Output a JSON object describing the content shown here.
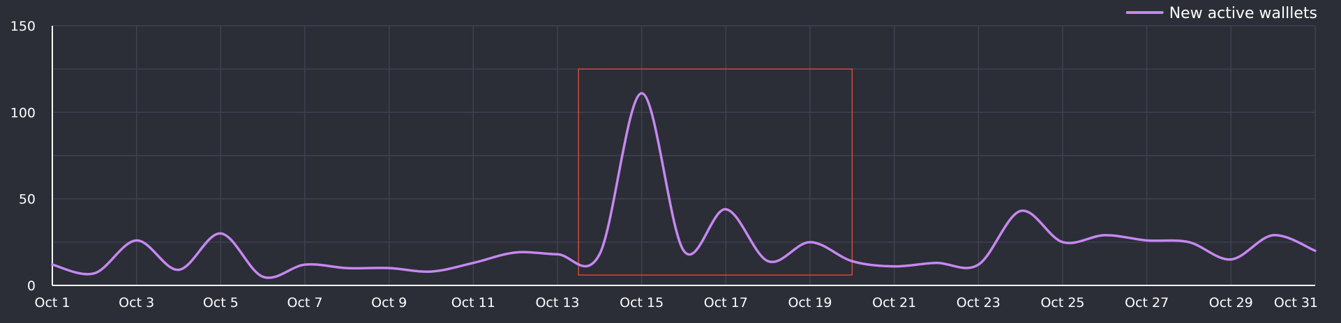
{
  "chart_data": {
    "type": "line",
    "title": "",
    "xlabel": "",
    "ylabel": "",
    "ylim": [
      0,
      150
    ],
    "y_ticks": [
      "0",
      "50",
      "100",
      "150"
    ],
    "x_ticks": [
      "Oct 1",
      "Oct 3",
      "Oct 5",
      "Oct 7",
      "Oct 9",
      "Oct 11",
      "Oct 13",
      "Oct 15",
      "Oct 17",
      "Oct 19",
      "Oct 21",
      "Oct 23",
      "Oct 25",
      "Oct 27",
      "Oct 29",
      "Oct 31"
    ],
    "grid": true,
    "legend_position": "top-right",
    "x": [
      "Oct 1",
      "Oct 2",
      "Oct 3",
      "Oct 4",
      "Oct 5",
      "Oct 6",
      "Oct 7",
      "Oct 8",
      "Oct 9",
      "Oct 10",
      "Oct 11",
      "Oct 12",
      "Oct 13",
      "Oct 14",
      "Oct 15",
      "Oct 16",
      "Oct 17",
      "Oct 18",
      "Oct 19",
      "Oct 20",
      "Oct 21",
      "Oct 22",
      "Oct 23",
      "Oct 24",
      "Oct 25",
      "Oct 26",
      "Oct 27",
      "Oct 28",
      "Oct 29",
      "Oct 30",
      "Oct 31"
    ],
    "series": [
      {
        "name": "New active walllets",
        "color": "#c688f0",
        "values": [
          12,
          7,
          26,
          9,
          30,
          5,
          12,
          10,
          10,
          8,
          13,
          19,
          18,
          18,
          111,
          20,
          44,
          14,
          25,
          14,
          11,
          13,
          12,
          43,
          25,
          29,
          26,
          25,
          15,
          29,
          20
        ]
      }
    ],
    "highlight_box": {
      "x_start": "Oct 13",
      "x_start_offset_days": 0.5,
      "x_end": "Oct 20",
      "y_min": 6,
      "y_max": 125,
      "color": "#d44a3a"
    }
  },
  "colors": {
    "background": "#2b2d37",
    "grid": "#3f4250",
    "axis": "#ffffff",
    "text": "#ffffff"
  }
}
